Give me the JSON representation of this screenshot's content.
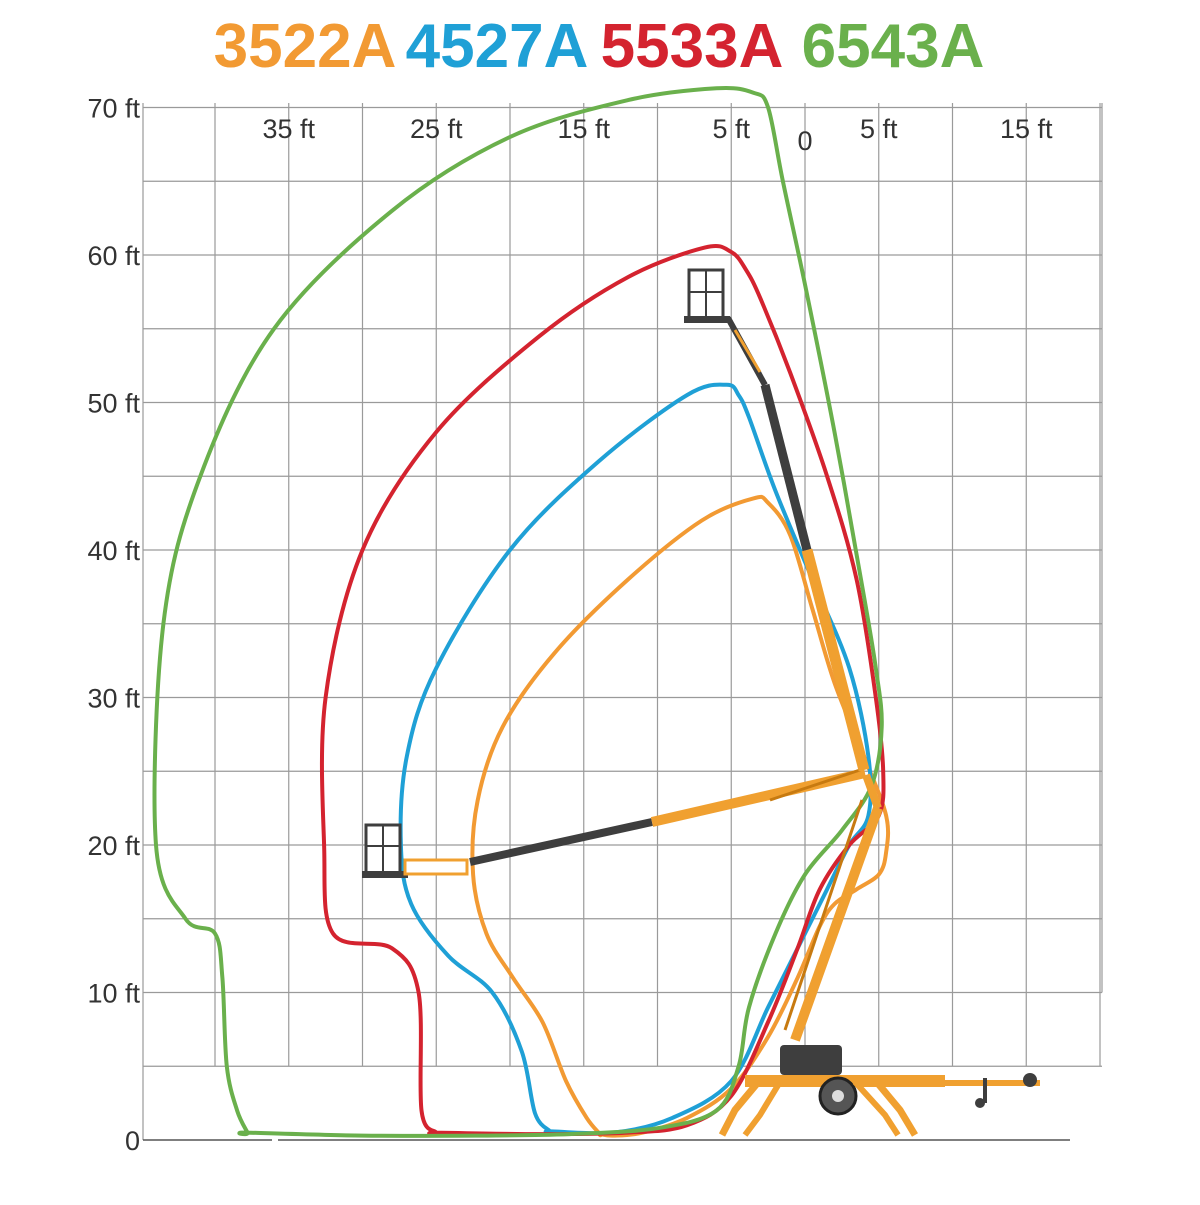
{
  "chart_data": {
    "type": "line",
    "title": "",
    "legend": {
      "placement": "top",
      "entries": [
        {
          "label": "3522A",
          "color": "#f29a33"
        },
        {
          "label": "4527A",
          "color": "#1fa0d6"
        },
        {
          "label": "5533A",
          "color": "#d4232f"
        },
        {
          "label": "6543A",
          "color": "#6ab04c"
        }
      ]
    },
    "y_axis": {
      "range": [
        0,
        70
      ],
      "tick_values": [
        0,
        10,
        20,
        30,
        40,
        50,
        60,
        70
      ],
      "tick_labels": [
        "0",
        "10 ft",
        "20 ft",
        "30 ft",
        "40 ft",
        "50 ft",
        "60 ft",
        "70 ft"
      ]
    },
    "x_axis": {
      "range": [
        -44,
        20
      ],
      "tick_values": [
        -35,
        -25,
        -15,
        -5,
        0,
        5,
        15
      ],
      "tick_labels": [
        "35 ft",
        "25 ft",
        "15 ft",
        "5 ft",
        "0",
        "5 ft",
        "15 ft"
      ],
      "placement": "top"
    },
    "grid": true,
    "series": [
      {
        "name": "3522A",
        "color": "#f29a33",
        "x": [
          -13.9,
          -14.8,
          -16.2,
          -17.8,
          -19.8,
          -21.6,
          -22.5,
          -22.2,
          -20.5,
          -17,
          -12,
          -7,
          -3.5,
          -2.5,
          -1,
          0.5,
          2,
          4,
          5.5,
          5.5,
          5,
          3.5,
          2,
          1,
          -0.5,
          -2.5,
          -5,
          -8,
          -11,
          -13,
          -13.9
        ],
        "y": [
          0.4,
          1.5,
          4,
          8,
          11,
          14,
          18,
          23,
          28,
          33,
          38,
          42,
          43.5,
          43.2,
          41,
          36,
          31,
          26,
          22,
          19.5,
          18,
          17,
          16,
          14.5,
          11,
          7,
          3.5,
          1.5,
          0.5,
          0.3,
          0.4
        ]
      },
      {
        "name": "4527A",
        "color": "#1fa0d6",
        "x": [
          -17.3,
          -18.3,
          -19.2,
          -21.2,
          -24.2,
          -26.7,
          -27.4,
          -27,
          -25,
          -20,
          -14,
          -8,
          -5.3,
          -4.5,
          -3.8,
          -2,
          0.5,
          3,
          4.3,
          4.3,
          3,
          1.5,
          -0.5,
          -2.5,
          -5,
          -9,
          -13,
          -17.3
        ],
        "y": [
          0.6,
          1.8,
          6,
          10,
          12.5,
          16,
          20,
          26,
          32,
          40,
          46,
          50.5,
          51.2,
          50.5,
          49,
          44,
          38,
          32,
          26,
          22,
          20,
          17,
          13,
          9,
          4,
          1.5,
          0.5,
          0.6
        ]
      },
      {
        "name": "5533A",
        "color": "#d4232f",
        "x": [
          -25,
          -26,
          -26.2,
          -28,
          -32,
          -32.6,
          -32.5,
          -30,
          -25,
          -18,
          -12,
          -6.8,
          -5,
          -4,
          -3,
          -1,
          1.5,
          3.5,
          4.8,
          5.3,
          5,
          3,
          1,
          -0.5,
          -2.5,
          -5,
          -8,
          -12,
          -18,
          -25
        ],
        "y": [
          0.5,
          2,
          10,
          13,
          14,
          20,
          30,
          40,
          48,
          54.5,
          58.5,
          60.5,
          60.2,
          59,
          57,
          52,
          45,
          38,
          30,
          25,
          22,
          20,
          17,
          13,
          8,
          3,
          1,
          0.5,
          0.4,
          0.5
        ]
      },
      {
        "name": "6543A",
        "color": "#6ab04c",
        "x": [
          -37.8,
          -38.5,
          -39.2,
          -39.5,
          -40,
          -42,
          -44,
          -43.5,
          -41,
          -36,
          -28,
          -20,
          -12,
          -6,
          -3.5,
          -2.5,
          -1.5,
          0,
          2,
          3.8,
          4.8,
          5.2,
          4.5,
          2.5,
          0,
          -2,
          -3.8,
          -4.5,
          -6,
          -10,
          -16,
          -22,
          -30,
          -37.8
        ],
        "y": [
          0.5,
          2,
          5,
          11,
          14,
          15,
          20,
          35,
          45,
          55,
          63,
          68,
          70.5,
          71.3,
          71,
          70,
          65,
          58,
          48,
          38,
          32,
          28,
          24,
          21,
          18,
          14,
          9,
          5,
          2,
          0.8,
          0.4,
          0.3,
          0.3,
          0.5
        ]
      }
    ]
  }
}
